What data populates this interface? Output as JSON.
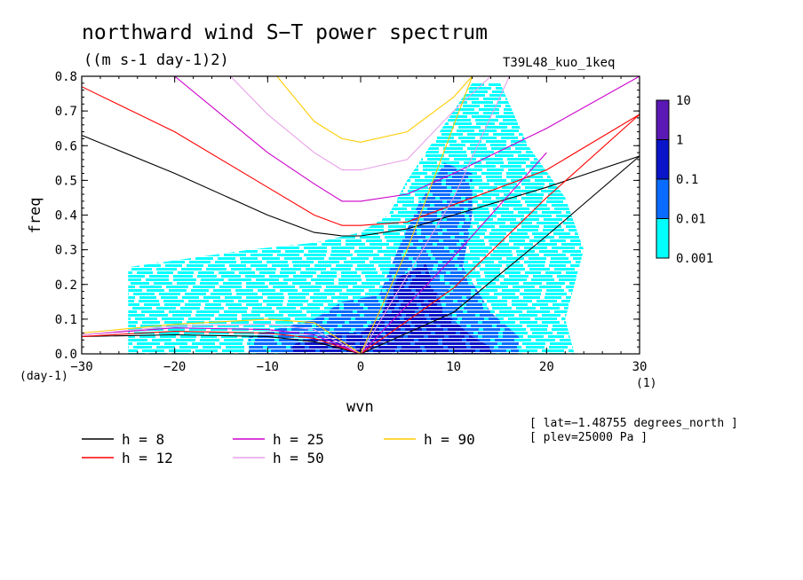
{
  "title": "northward wind S−T power spectrum",
  "subtitle": "((m s-1 day-1)2)",
  "run_label": "T39L48_kuo_1keq",
  "info_lines": [
    "[ lat=−1.48755 degrees_north ]",
    "[ plev=25000 Pa ]"
  ],
  "chart_data": {
    "type": "heatmap",
    "xlabel": "wvn",
    "ylabel": "freq",
    "x_unit": "(1)",
    "y_unit": "(day-1)",
    "xlim": [
      -30,
      30
    ],
    "ylim": [
      0,
      0.8
    ],
    "x_ticks": [
      -30,
      -20,
      -10,
      0,
      10,
      20,
      30
    ],
    "x_tick_labels": [
      "−30",
      "−20",
      "−10",
      "0",
      "10",
      "20",
      "30"
    ],
    "y_ticks": [
      0.0,
      0.1,
      0.2,
      0.3,
      0.4,
      0.5,
      0.6,
      0.7,
      0.8
    ],
    "y_tick_labels": [
      "0.0",
      "0.1",
      "0.2",
      "0.3",
      "0.4",
      "0.5",
      "0.6",
      "0.7",
      "0.8"
    ],
    "colorbar": {
      "levels": [
        0.001,
        0.01,
        0.1,
        1,
        10
      ],
      "labels": [
        "0.001",
        "0.01",
        "0.1",
        "1",
        "10"
      ],
      "colors": [
        "#00ffff",
        "#0a6cff",
        "#0a14c8",
        "#5a18b4"
      ]
    },
    "power_regions": [
      {
        "level": "0.001-0.01",
        "polygon": [
          [
            -25,
            0.0
          ],
          [
            -25,
            0.25
          ],
          [
            -12,
            0.3
          ],
          [
            -5,
            0.32
          ],
          [
            0,
            0.35
          ],
          [
            3,
            0.4
          ],
          [
            5,
            0.5
          ],
          [
            8,
            0.62
          ],
          [
            12,
            0.78
          ],
          [
            15,
            0.78
          ],
          [
            18,
            0.6
          ],
          [
            22,
            0.45
          ],
          [
            24,
            0.3
          ],
          [
            22,
            0.1
          ],
          [
            23,
            0.0
          ]
        ]
      },
      {
        "level": "0.01-0.1",
        "polygon": [
          [
            -12,
            0.0
          ],
          [
            -12,
            0.05
          ],
          [
            -5,
            0.1
          ],
          [
            -2,
            0.15
          ],
          [
            2,
            0.17
          ],
          [
            4,
            0.3
          ],
          [
            6,
            0.42
          ],
          [
            9,
            0.55
          ],
          [
            12,
            0.52
          ],
          [
            12,
            0.4
          ],
          [
            11,
            0.25
          ],
          [
            14,
            0.12
          ],
          [
            17,
            0.05
          ],
          [
            17,
            0.0
          ]
        ]
      },
      {
        "level": "0.1-1",
        "polygon": [
          [
            -8,
            0.0
          ],
          [
            -7,
            0.03
          ],
          [
            -3,
            0.06
          ],
          [
            0,
            0.06
          ],
          [
            2,
            0.1
          ],
          [
            4,
            0.22
          ],
          [
            7,
            0.26
          ],
          [
            9,
            0.12
          ],
          [
            12,
            0.05
          ],
          [
            14,
            0.02
          ],
          [
            14,
            0.0
          ]
        ]
      }
    ],
    "series": [
      {
        "name": "h =  8",
        "color": "#000000",
        "curves": [
          {
            "x": [
              -30,
              -20,
              -10,
              -5,
              -2,
              0,
              5,
              10,
              20,
              30
            ],
            "y": [
              0.63,
              0.52,
              0.4,
              0.35,
              0.34,
              0.34,
              0.36,
              0.4,
              0.48,
              0.57
            ]
          },
          {
            "x": [
              -30,
              -20,
              -10,
              -5,
              0
            ],
            "y": [
              0.05,
              0.055,
              0.05,
              0.035,
              0.0
            ]
          },
          {
            "x": [
              0,
              10,
              20,
              30
            ],
            "y": [
              0.0,
              0.12,
              0.34,
              0.57
            ]
          }
        ]
      },
      {
        "name": "h = 12",
        "color": "#ff0000",
        "curves": [
          {
            "x": [
              -30,
              -20,
              -10,
              -5,
              -2,
              0,
              5,
              10,
              20,
              30
            ],
            "y": [
              0.77,
              0.64,
              0.48,
              0.4,
              0.37,
              0.37,
              0.38,
              0.43,
              0.53,
              0.69
            ]
          },
          {
            "x": [
              -30,
              -20,
              -10,
              -5,
              0
            ],
            "y": [
              0.05,
              0.065,
              0.06,
              0.045,
              0.0
            ]
          },
          {
            "x": [
              0,
              10,
              20,
              30
            ],
            "y": [
              0.0,
              0.19,
              0.45,
              0.69
            ]
          }
        ]
      },
      {
        "name": "h = 25",
        "color": "#cc00cc",
        "curves": [
          {
            "x": [
              -20,
              -10,
              -5,
              -2,
              0,
              5,
              10,
              20,
              30
            ],
            "y": [
              0.8,
              0.58,
              0.49,
              0.44,
              0.44,
              0.46,
              0.52,
              0.65,
              0.8
            ]
          },
          {
            "x": [
              -30,
              -20,
              -10,
              -5,
              0
            ],
            "y": [
              0.055,
              0.075,
              0.07,
              0.055,
              0.0
            ]
          },
          {
            "x": [
              0,
              10,
              20
            ],
            "y": [
              0.0,
              0.28,
              0.58
            ]
          }
        ]
      },
      {
        "name": "h = 50",
        "color": "#e8a0e8",
        "curves": [
          {
            "x": [
              -14,
              -10,
              -5,
              -2,
              0,
              5,
              10,
              14
            ],
            "y": [
              0.8,
              0.69,
              0.58,
              0.53,
              0.53,
              0.56,
              0.7,
              0.8
            ]
          },
          {
            "x": [
              -30,
              -20,
              -10,
              -5,
              0
            ],
            "y": [
              0.055,
              0.08,
              0.085,
              0.07,
              0.0
            ]
          },
          {
            "x": [
              0,
              10,
              16
            ],
            "y": [
              0.0,
              0.45,
              0.8
            ]
          }
        ]
      },
      {
        "name": "h = 90",
        "color": "#ffcc00",
        "curves": [
          {
            "x": [
              -9,
              -5,
              -2,
              0,
              5,
              10,
              12
            ],
            "y": [
              0.8,
              0.67,
              0.62,
              0.61,
              0.64,
              0.74,
              0.8
            ]
          },
          {
            "x": [
              -30,
              -20,
              -10,
              -5,
              0
            ],
            "y": [
              0.06,
              0.085,
              0.1,
              0.09,
              0.0
            ]
          },
          {
            "x": [
              0,
              5,
              12
            ],
            "y": [
              0.0,
              0.3,
              0.8
            ]
          }
        ]
      }
    ]
  }
}
